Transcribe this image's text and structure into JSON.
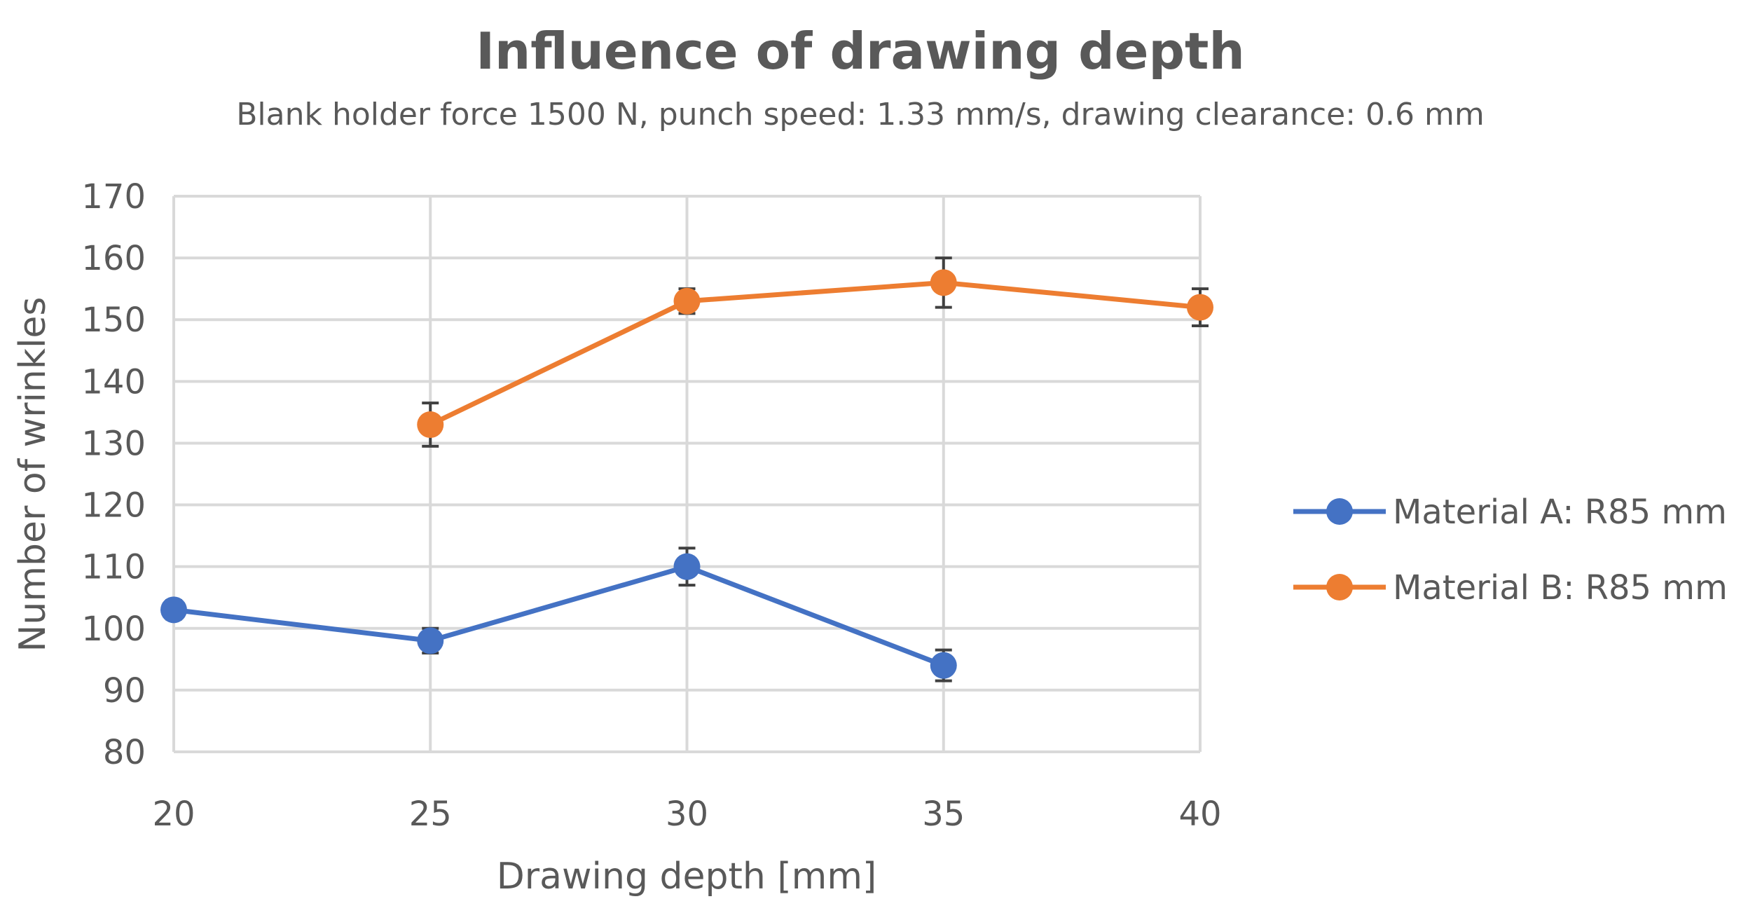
{
  "chart_data": {
    "type": "line",
    "title": "Influence of drawing depth",
    "subtitle": "Blank holder force 1500 N, punch speed: 1.33 mm/s, drawing clearance: 0.6 mm",
    "xlabel": "Drawing depth [mm]",
    "ylabel": "Number of wrinkles",
    "xlim": [
      20,
      40
    ],
    "ylim": [
      80,
      170
    ],
    "x_ticks": [
      20,
      25,
      30,
      35,
      40
    ],
    "y_ticks": [
      80,
      90,
      100,
      110,
      120,
      130,
      140,
      150,
      160,
      170
    ],
    "grid": true,
    "legend_position": "right",
    "error_bars": true,
    "series": [
      {
        "name": "Material A: R85 mm",
        "color": "#4472C4",
        "points": [
          {
            "x": 20,
            "y": 103,
            "err": 1.5
          },
          {
            "x": 25,
            "y": 98,
            "err": 2
          },
          {
            "x": 30,
            "y": 110,
            "err": 3
          },
          {
            "x": 35,
            "y": 94,
            "err": 2.5
          }
        ]
      },
      {
        "name": "Material B: R85 mm",
        "color": "#ED7D31",
        "points": [
          {
            "x": 25,
            "y": 133,
            "err": 3.5
          },
          {
            "x": 30,
            "y": 153,
            "err": 2
          },
          {
            "x": 35,
            "y": 156,
            "err": 4
          },
          {
            "x": 40,
            "y": 152,
            "err": 3
          }
        ]
      }
    ]
  }
}
